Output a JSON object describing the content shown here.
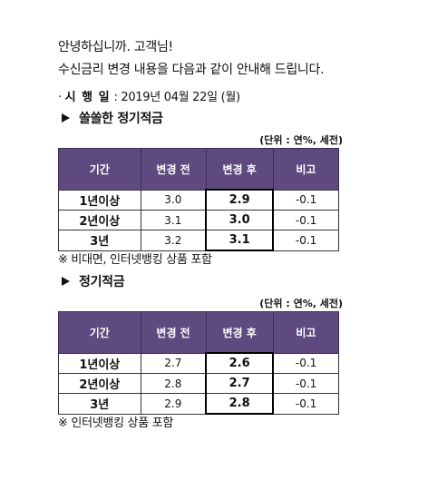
{
  "greeting": {
    "line1": "안녕하십니까. 고객님!",
    "line2": "수신금리 변경 내용을 다음과 같이 안내해 드립니다."
  },
  "effective": {
    "prefix": "· ",
    "label": "시 행 일",
    "sep": " : ",
    "value": "2019년 04월 22일 (월)"
  },
  "sections": [
    {
      "title": "쏠쏠한 정기적금",
      "unit": "(단위 : 연%, 세전)",
      "headers": [
        "기간",
        "변경 전",
        "변경 후",
        "비고"
      ],
      "rows": [
        {
          "period": "1년이상",
          "before": "3.0",
          "after": "2.9",
          "note": "-0.1"
        },
        {
          "period": "2년이상",
          "before": "3.1",
          "after": "3.0",
          "note": "-0.1"
        },
        {
          "period": "3년",
          "before": "3.2",
          "after": "3.1",
          "note": "-0.1"
        }
      ],
      "footnote": "※ 비대면, 인터넷뱅킹 상품 포함"
    },
    {
      "title": "정기적금",
      "unit": "(단위 : 연%, 세전)",
      "headers": [
        "기간",
        "변경 전",
        "변경 후",
        "비고"
      ],
      "rows": [
        {
          "period": "1년이상",
          "before": "2.7",
          "after": "2.6",
          "note": "-0.1"
        },
        {
          "period": "2년이상",
          "before": "2.8",
          "after": "2.7",
          "note": "-0.1"
        },
        {
          "period": "3년",
          "before": "2.9",
          "after": "2.8",
          "note": "-0.1"
        }
      ],
      "footnote": "※ 인터넷뱅킹 상품 포함"
    }
  ],
  "colors": {
    "header_bg": "#5e4a7e",
    "header_text": "#ffffff"
  }
}
